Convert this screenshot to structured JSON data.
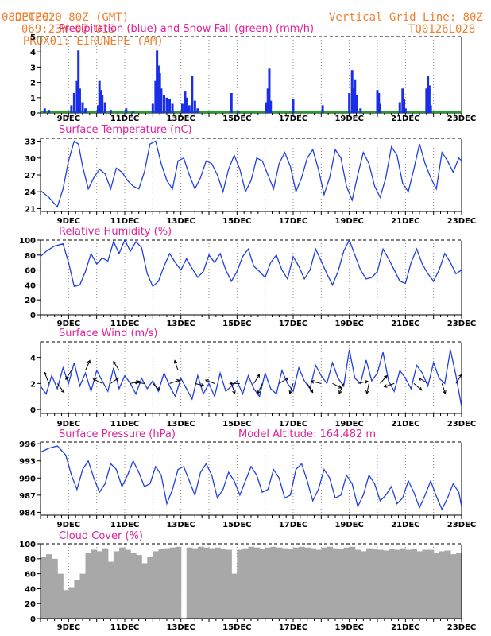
{
  "header": {
    "source": "CPTEC:",
    "coords": "069:23W-07:01S",
    "station": "PROX01: EIRUNEPE (AM)",
    "date": "08DEC2020 80Z (GMT)",
    "grid_note": "Vertical Grid Line: 80Z",
    "model": "TQ0126L028"
  },
  "x_labels": [
    "9DEC",
    "11DEC",
    "13DEC",
    "15DEC",
    "17DEC",
    "19DEC",
    "21DEC",
    "23DEC"
  ],
  "chart_data": [
    {
      "type": "bar",
      "title": "Precipitation (blue) and Snow Fall (green) (mm/h)",
      "ylim": [
        0,
        5
      ],
      "yticks": [
        0,
        1,
        2,
        3,
        4,
        5
      ],
      "colors": {
        "precip": "#1a2ee8",
        "snow": "#20a020"
      },
      "series": [
        {
          "name": "Precipitation",
          "points": [
            [
              8.15,
              0.3
            ],
            [
              8.3,
              0.2
            ],
            [
              9.1,
              0.5
            ],
            [
              9.2,
              1.3
            ],
            [
              9.3,
              2.1
            ],
            [
              9.35,
              4.1
            ],
            [
              9.4,
              1.6
            ],
            [
              9.5,
              0.7
            ],
            [
              9.6,
              0.3
            ],
            [
              10.05,
              0.5
            ],
            [
              10.1,
              2.1
            ],
            [
              10.15,
              1.5
            ],
            [
              10.2,
              1.2
            ],
            [
              10.3,
              0.7
            ],
            [
              10.5,
              0.2
            ],
            [
              11.05,
              0.3
            ],
            [
              11.3,
              0.1
            ],
            [
              12.0,
              0.6
            ],
            [
              12.1,
              2.1
            ],
            [
              12.15,
              4.1
            ],
            [
              12.2,
              3.1
            ],
            [
              12.25,
              2.6
            ],
            [
              12.3,
              1.6
            ],
            [
              12.4,
              1.2
            ],
            [
              12.5,
              1.0
            ],
            [
              12.6,
              0.9
            ],
            [
              12.7,
              0.6
            ],
            [
              13.05,
              0.6
            ],
            [
              13.15,
              1.4
            ],
            [
              13.2,
              1.0
            ],
            [
              13.3,
              0.5
            ],
            [
              13.4,
              2.4
            ],
            [
              13.5,
              0.8
            ],
            [
              13.6,
              0.3
            ],
            [
              14.8,
              1.3
            ],
            [
              15.05,
              0.1
            ],
            [
              16.05,
              0.7
            ],
            [
              16.1,
              1.6
            ],
            [
              16.15,
              2.9
            ],
            [
              16.2,
              0.8
            ],
            [
              17.0,
              0.9
            ],
            [
              18.05,
              0.5
            ],
            [
              19.0,
              1.3
            ],
            [
              19.1,
              2.8
            ],
            [
              19.15,
              1.6
            ],
            [
              19.2,
              2.2
            ],
            [
              19.25,
              1.2
            ],
            [
              19.4,
              0.3
            ],
            [
              20.0,
              1.5
            ],
            [
              20.05,
              1.3
            ],
            [
              20.1,
              0.6
            ],
            [
              20.8,
              0.7
            ],
            [
              20.9,
              1.6
            ],
            [
              20.95,
              0.9
            ],
            [
              21.0,
              0.3
            ],
            [
              21.75,
              1.6
            ],
            [
              21.8,
              2.4
            ],
            [
              21.85,
              1.8
            ],
            [
              21.9,
              0.5
            ]
          ]
        }
      ]
    },
    {
      "type": "line",
      "title": "Surface Temperature (nC)",
      "ylim": [
        20.5,
        33.5
      ],
      "yticks": [
        21,
        24,
        27,
        30,
        33
      ],
      "color": "#2040e0",
      "x": [
        8.0,
        8.3,
        8.6,
        8.8,
        9.0,
        9.2,
        9.35,
        9.5,
        9.7,
        9.9,
        10.1,
        10.3,
        10.5,
        10.7,
        10.9,
        11.1,
        11.3,
        11.5,
        11.7,
        11.9,
        12.1,
        12.3,
        12.5,
        12.7,
        12.9,
        13.1,
        13.3,
        13.5,
        13.7,
        13.9,
        14.1,
        14.3,
        14.5,
        14.7,
        14.9,
        15.1,
        15.3,
        15.5,
        15.7,
        15.9,
        16.1,
        16.3,
        16.5,
        16.7,
        16.9,
        17.1,
        17.3,
        17.5,
        17.7,
        17.9,
        18.1,
        18.3,
        18.5,
        18.7,
        18.9,
        19.1,
        19.3,
        19.5,
        19.7,
        19.9,
        20.1,
        20.3,
        20.5,
        20.7,
        20.9,
        21.1,
        21.3,
        21.5,
        21.7,
        21.9,
        22.1,
        22.3,
        22.5,
        22.7,
        22.9,
        23.0
      ],
      "values": [
        24.2,
        23.0,
        21.3,
        24.5,
        29.5,
        33.0,
        32.5,
        28.5,
        24.5,
        26.5,
        28.0,
        27.2,
        24.5,
        28.2,
        27.5,
        26.0,
        25.0,
        24.5,
        27.5,
        32.5,
        33.0,
        29.0,
        26.0,
        24.5,
        29.5,
        30.0,
        27.0,
        24.5,
        26.5,
        29.5,
        29.0,
        27.0,
        24.0,
        28.0,
        30.5,
        28.0,
        24.0,
        26.0,
        30.0,
        29.5,
        27.0,
        24.5,
        29.0,
        31.0,
        28.5,
        24.0,
        26.5,
        30.0,
        31.5,
        28.0,
        23.5,
        26.5,
        31.5,
        30.0,
        25.0,
        22.5,
        27.0,
        31.0,
        29.0,
        25.0,
        23.0,
        26.5,
        32.0,
        30.5,
        25.5,
        24.0,
        28.0,
        32.5,
        29.0,
        26.5,
        24.5,
        31.0,
        29.5,
        27.5,
        30.0,
        29.5
      ]
    },
    {
      "type": "line",
      "title": "Relative Humidity (%)",
      "ylim": [
        0,
        100
      ],
      "yticks": [
        0,
        20,
        40,
        60,
        80,
        100
      ],
      "color": "#2040e0",
      "x": [
        8.0,
        8.2,
        8.5,
        8.8,
        9.0,
        9.2,
        9.4,
        9.6,
        9.8,
        10.0,
        10.2,
        10.4,
        10.6,
        10.8,
        11.0,
        11.2,
        11.4,
        11.6,
        11.8,
        12.0,
        12.2,
        12.4,
        12.6,
        12.8,
        13.0,
        13.2,
        13.4,
        13.6,
        13.8,
        14.0,
        14.2,
        14.4,
        14.6,
        14.8,
        15.0,
        15.2,
        15.4,
        15.6,
        15.8,
        16.0,
        16.2,
        16.4,
        16.6,
        16.8,
        17.0,
        17.2,
        17.4,
        17.6,
        17.8,
        18.0,
        18.2,
        18.4,
        18.6,
        18.8,
        19.0,
        19.2,
        19.4,
        19.6,
        19.8,
        20.0,
        20.2,
        20.4,
        20.6,
        20.8,
        21.0,
        21.2,
        21.4,
        21.6,
        21.8,
        22.0,
        22.2,
        22.4,
        22.6,
        22.8,
        23.0
      ],
      "values": [
        78,
        85,
        92,
        95,
        70,
        38,
        40,
        58,
        82,
        68,
        76,
        72,
        98,
        82,
        100,
        85,
        98,
        90,
        55,
        38,
        45,
        65,
        82,
        70,
        60,
        75,
        62,
        50,
        58,
        80,
        70,
        82,
        60,
        45,
        58,
        78,
        88,
        65,
        58,
        50,
        70,
        80,
        60,
        48,
        78,
        65,
        48,
        60,
        88,
        72,
        55,
        40,
        58,
        85,
        100,
        80,
        60,
        48,
        50,
        58,
        88,
        75,
        60,
        45,
        42,
        70,
        88,
        68,
        55,
        45,
        60,
        82,
        70,
        55,
        60
      ]
    },
    {
      "type": "line",
      "title": "Surface Wind (m/s)",
      "ylim": [
        -0.3,
        5.2
      ],
      "yticks": [
        0,
        2,
        4
      ],
      "color": "#2040e0",
      "x": [
        8.0,
        8.2,
        8.4,
        8.6,
        8.8,
        9.0,
        9.2,
        9.4,
        9.6,
        9.8,
        10.0,
        10.2,
        10.4,
        10.6,
        10.8,
        11.0,
        11.2,
        11.4,
        11.6,
        11.8,
        12.0,
        12.2,
        12.4,
        12.6,
        12.8,
        13.0,
        13.2,
        13.4,
        13.6,
        13.8,
        14.0,
        14.2,
        14.4,
        14.6,
        14.8,
        15.0,
        15.2,
        15.4,
        15.6,
        15.8,
        16.0,
        16.2,
        16.4,
        16.6,
        16.8,
        17.0,
        17.2,
        17.4,
        17.6,
        17.8,
        18.0,
        18.2,
        18.4,
        18.6,
        18.8,
        19.0,
        19.2,
        19.4,
        19.6,
        19.8,
        20.0,
        20.2,
        20.4,
        20.6,
        20.8,
        21.0,
        21.2,
        21.4,
        21.6,
        21.8,
        22.0,
        22.2,
        22.4,
        22.6,
        22.8,
        23.0
      ],
      "values": [
        1.8,
        1.2,
        2.6,
        1.6,
        3.2,
        2.0,
        3.6,
        1.8,
        2.8,
        1.4,
        3.0,
        2.2,
        1.4,
        3.2,
        1.6,
        2.6,
        2.0,
        1.2,
        2.4,
        1.6,
        2.2,
        1.4,
        2.8,
        1.8,
        1.0,
        2.4,
        1.6,
        0.8,
        2.6,
        1.2,
        2.0,
        1.0,
        2.8,
        1.4,
        1.8,
        2.2,
        1.2,
        2.6,
        1.6,
        1.0,
        2.8,
        1.6,
        1.2,
        3.0,
        2.0,
        1.4,
        3.2,
        2.2,
        1.6,
        3.4,
        2.6,
        2.0,
        3.6,
        2.4,
        1.8,
        4.6,
        2.4,
        2.0,
        3.8,
        2.2,
        2.8,
        4.4,
        2.2,
        1.4,
        3.0,
        2.4,
        1.6,
        3.4,
        2.8,
        1.8,
        3.6,
        2.4,
        2.0,
        4.6,
        2.6,
        0.2
      ],
      "arrows": [
        [
          8.3,
          2,
          -0.4,
          1
        ],
        [
          8.6,
          2,
          0.6,
          -0.8
        ],
        [
          9.1,
          3,
          -0.5,
          -0.8
        ],
        [
          9.6,
          3,
          0.4,
          0.9
        ],
        [
          10.2,
          2,
          -0.8,
          0.4
        ],
        [
          10.5,
          2,
          0.7,
          0.5
        ],
        [
          10.8,
          3,
          -0.5,
          0.8
        ],
        [
          11.2,
          2,
          0.8,
          0.2
        ],
        [
          11.7,
          2,
          -0.9,
          0.1
        ],
        [
          12.0,
          2,
          0.6,
          -0.6
        ],
        [
          12.6,
          2,
          0.9,
          0.3
        ],
        [
          12.9,
          3,
          -0.3,
          0.9
        ],
        [
          13.5,
          2,
          0.8,
          -0.2
        ],
        [
          14.2,
          2,
          -0.8,
          0.3
        ],
        [
          14.8,
          2,
          0.3,
          -0.9
        ],
        [
          15.1,
          2,
          -0.9,
          0
        ],
        [
          15.6,
          2,
          0.5,
          0.8
        ],
        [
          15.9,
          2,
          -0.4,
          -0.9
        ],
        [
          16.5,
          2,
          0.8,
          0.5
        ],
        [
          17.0,
          2,
          -0.3,
          -0.9
        ],
        [
          17.5,
          2,
          0.5,
          -0.8
        ],
        [
          18.0,
          2,
          -0.9,
          0.2
        ],
        [
          18.4,
          2,
          0.8,
          -0.4
        ],
        [
          18.8,
          2,
          -0.4,
          -0.9
        ],
        [
          19.3,
          2,
          0.9,
          0.2
        ],
        [
          19.7,
          2,
          -0.2,
          -0.9
        ],
        [
          20.1,
          2,
          0.6,
          0.7
        ],
        [
          20.6,
          2,
          -0.9,
          -0.3
        ],
        [
          21.3,
          2,
          0.7,
          -0.6
        ],
        [
          21.8,
          2,
          -0.8,
          0.5
        ],
        [
          22.3,
          2,
          0.3,
          -0.9
        ],
        [
          22.8,
          2,
          0.5,
          0.8
        ]
      ]
    },
    {
      "type": "line",
      "title": "Surface Pressure (hPa)",
      "annotation": "Model Altitude: 164.482 m",
      "ylim": [
        983.5,
        996.3
      ],
      "yticks": [
        984,
        987,
        990,
        993,
        996
      ],
      "color": "#2040e0",
      "x": [
        8.0,
        8.3,
        8.6,
        8.9,
        9.1,
        9.3,
        9.5,
        9.7,
        9.9,
        10.1,
        10.3,
        10.5,
        10.7,
        10.9,
        11.1,
        11.3,
        11.5,
        11.7,
        11.9,
        12.1,
        12.3,
        12.5,
        12.7,
        12.9,
        13.1,
        13.3,
        13.5,
        13.7,
        13.9,
        14.1,
        14.3,
        14.5,
        14.7,
        14.9,
        15.1,
        15.3,
        15.5,
        15.7,
        15.9,
        16.1,
        16.3,
        16.5,
        16.7,
        16.9,
        17.1,
        17.3,
        17.5,
        17.7,
        17.9,
        18.1,
        18.3,
        18.5,
        18.7,
        18.9,
        19.1,
        19.3,
        19.5,
        19.7,
        19.9,
        20.1,
        20.3,
        20.5,
        20.7,
        20.9,
        21.1,
        21.3,
        21.5,
        21.7,
        21.9,
        22.1,
        22.3,
        22.5,
        22.7,
        22.9,
        23.0
      ],
      "values": [
        994.5,
        995.2,
        995.6,
        994.0,
        990.5,
        988.0,
        991.5,
        993.0,
        990.0,
        987.5,
        989.0,
        992.5,
        991.5,
        988.5,
        990.5,
        993.0,
        991.0,
        988.5,
        989.0,
        992.0,
        990.5,
        985.5,
        988.0,
        991.5,
        992.0,
        989.5,
        987.0,
        991.0,
        992.5,
        990.5,
        986.5,
        988.0,
        991.0,
        989.5,
        987.0,
        989.5,
        992.0,
        990.5,
        987.5,
        988.0,
        991.5,
        990.0,
        986.5,
        987.0,
        991.5,
        992.5,
        989.5,
        986.0,
        988.0,
        991.5,
        990.0,
        986.5,
        987.0,
        990.5,
        989.0,
        985.0,
        987.0,
        990.5,
        989.0,
        986.0,
        987.0,
        988.5,
        985.5,
        986.5,
        989.5,
        987.5,
        984.8,
        987.0,
        989.5,
        986.8,
        984.5,
        986.5,
        989.0,
        987.5,
        985.0
      ]
    },
    {
      "type": "area",
      "title": "Cloud Cover (%)",
      "ylim": [
        0,
        100
      ],
      "yticks": [
        0,
        20,
        40,
        60,
        80,
        100
      ],
      "color": "#a8a8a8",
      "x": [
        8.0,
        8.2,
        8.4,
        8.6,
        8.8,
        9.0,
        9.2,
        9.4,
        9.6,
        9.8,
        10.0,
        10.2,
        10.4,
        10.6,
        10.8,
        11.0,
        11.2,
        11.4,
        11.6,
        11.8,
        12.0,
        12.2,
        12.4,
        12.6,
        12.8,
        13.0,
        13.2,
        13.4,
        13.6,
        13.8,
        14.0,
        14.2,
        14.4,
        14.6,
        14.8,
        15.0,
        15.2,
        15.4,
        15.6,
        15.8,
        16.0,
        16.2,
        16.4,
        16.6,
        16.8,
        17.0,
        17.2,
        17.4,
        17.6,
        17.8,
        18.0,
        18.2,
        18.4,
        18.6,
        18.8,
        19.0,
        19.2,
        19.4,
        19.6,
        19.8,
        20.0,
        20.2,
        20.4,
        20.6,
        20.8,
        21.0,
        21.2,
        21.4,
        21.6,
        21.8,
        22.0,
        22.2,
        22.4,
        22.6,
        22.8,
        23.0
      ],
      "values": [
        82,
        86,
        80,
        60,
        38,
        42,
        52,
        60,
        88,
        92,
        90,
        94,
        76,
        90,
        95,
        92,
        88,
        85,
        74,
        82,
        90,
        93,
        94,
        95,
        96,
        0,
        95,
        94,
        96,
        95,
        94,
        95,
        93,
        92,
        60,
        92,
        94,
        96,
        95,
        93,
        95,
        96,
        95,
        94,
        93,
        95,
        96,
        95,
        94,
        92,
        95,
        96,
        94,
        93,
        95,
        96,
        92,
        90,
        94,
        93,
        92,
        91,
        93,
        92,
        94,
        92,
        93,
        90,
        92,
        92,
        88,
        90,
        91,
        86,
        88,
        86
      ]
    }
  ]
}
